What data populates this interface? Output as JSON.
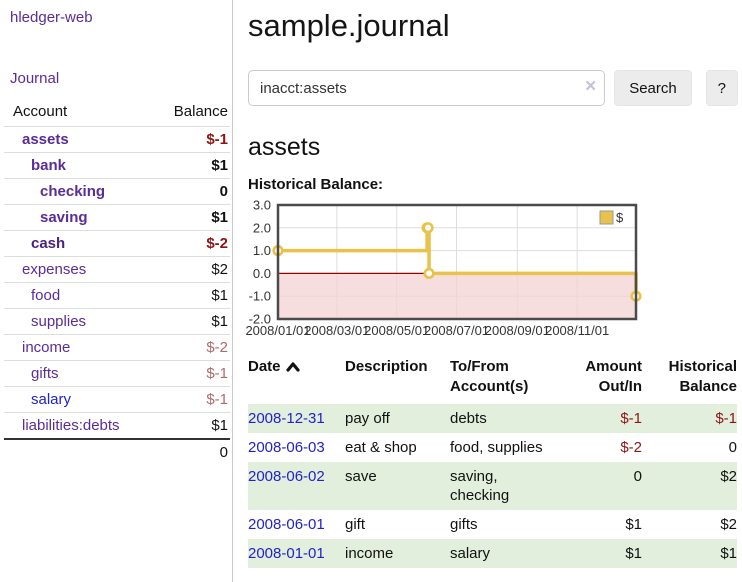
{
  "palette": {
    "link_purple": "#5B2C98",
    "link_blue": "#2222CC",
    "negative_strong": "#8E1414",
    "negative_muted": "#B06A6A",
    "text_black": "#111111",
    "stripe_green": "#E2EFDC"
  },
  "sidebar": {
    "brand": "hledger-web",
    "nav_journal": "Journal",
    "accounts_table": {
      "headers": {
        "account": "Account",
        "balance": "Balance"
      },
      "rows": [
        {
          "label": "assets",
          "indent": 1,
          "bold": true,
          "color": "#5B2C98",
          "balance": "$-1",
          "balance_color": "#8E1414"
        },
        {
          "label": "bank",
          "indent": 2,
          "bold": true,
          "color": "#5B2C98",
          "balance": "$1",
          "balance_color": "#111111"
        },
        {
          "label": "checking",
          "indent": 3,
          "bold": true,
          "color": "#5B2C98",
          "balance": "0",
          "balance_color": "#111111"
        },
        {
          "label": "saving",
          "indent": 3,
          "bold": true,
          "color": "#5B2C98",
          "balance": "$1",
          "balance_color": "#111111"
        },
        {
          "label": "cash",
          "indent": 2,
          "bold": true,
          "color": "#4A1F7E",
          "balance": "$-2",
          "balance_color": "#8E1414"
        },
        {
          "label": "expenses",
          "indent": 1,
          "bold": false,
          "color": "#5B2C98",
          "balance": "$2",
          "balance_color": "#111111"
        },
        {
          "label": "food",
          "indent": 2,
          "bold": false,
          "color": "#5B2C98",
          "balance": "$1",
          "balance_color": "#111111"
        },
        {
          "label": "supplies",
          "indent": 2,
          "bold": false,
          "color": "#5B2C98",
          "balance": "$1",
          "balance_color": "#111111"
        },
        {
          "label": "income",
          "indent": 1,
          "bold": false,
          "color": "#5B2C98",
          "balance": "$-2",
          "balance_color": "#B06A6A"
        },
        {
          "label": "gifts",
          "indent": 2,
          "bold": false,
          "color": "#5B2C98",
          "balance": "$-1",
          "balance_color": "#B06A6A"
        },
        {
          "label": "salary",
          "indent": 2,
          "bold": false,
          "color": "#2222CC",
          "balance": "$-1",
          "balance_color": "#B06A6A"
        },
        {
          "label": "liabilities:debts",
          "indent": 1,
          "bold": false,
          "color": "#5B2C98",
          "balance": "$1",
          "balance_color": "#111111"
        }
      ],
      "total": "0"
    }
  },
  "header": {
    "title": "sample.journal"
  },
  "search": {
    "value": "inacct:assets",
    "clear_icon": "×",
    "button_label": "Search",
    "help_label": "?"
  },
  "account_page": {
    "heading": "assets",
    "chart_label": "Historical Balance:"
  },
  "chart_data": {
    "type": "line",
    "step": true,
    "title": "Historical Balance:",
    "series": [
      {
        "name": "$",
        "color": "#E8C24A",
        "points": [
          {
            "date": "2008-01-01",
            "value": 1
          },
          {
            "date": "2008-06-01",
            "value": 2
          },
          {
            "date": "2008-06-02",
            "value": 2
          },
          {
            "date": "2008-06-03",
            "value": 0
          },
          {
            "date": "2008-12-31",
            "value": -1
          }
        ]
      }
    ],
    "x_range": [
      "2008-01-01",
      "2008-12-31"
    ],
    "x_ticks": [
      "2008/01/01",
      "2008/03/01",
      "2008/05/01",
      "2008/07/01",
      "2008/09/01",
      "2008/11/01"
    ],
    "y_ticks": [
      -2,
      -1,
      0,
      1,
      2,
      3
    ],
    "y_tick_labels": [
      "-2.0",
      "-1.0",
      "0.0",
      "1.0",
      "2.0",
      "3.0"
    ],
    "ylim": [
      -2,
      3
    ],
    "legend": {
      "label": "$",
      "position": "top-right"
    },
    "grid_color": "#DDDDDD",
    "negative_region_color": "#F4D3D3",
    "zero_line_color": "#990000",
    "border_color": "#4A4A4A"
  },
  "transactions": {
    "date_link_color": "#2222CC",
    "columns": [
      {
        "label": "Date",
        "sorted": "ascending"
      },
      {
        "label": "Description"
      },
      {
        "line1": "To/From",
        "line2": "Account(s)"
      },
      {
        "line1": "Amount",
        "line2": "Out/In"
      },
      {
        "line1": "Historical",
        "line2": "Balance"
      }
    ],
    "rows": [
      {
        "date": "2008-12-31",
        "description": "pay off",
        "accounts": "debts",
        "amount": "$-1",
        "amount_color": "#8E1414",
        "balance": "$-1",
        "balance_color": "#8E1414"
      },
      {
        "date": "2008-06-03",
        "description": "eat & shop",
        "accounts": "food, supplies",
        "amount": "$-2",
        "amount_color": "#8E1414",
        "balance": "0",
        "balance_color": "#111111"
      },
      {
        "date": "2008-06-02",
        "description": "save",
        "accounts": "saving, checking",
        "amount": "0",
        "amount_color": "#111111",
        "balance": "$2",
        "balance_color": "#111111"
      },
      {
        "date": "2008-06-01",
        "description": "gift",
        "accounts": "gifts",
        "amount": "$1",
        "amount_color": "#111111",
        "balance": "$2",
        "balance_color": "#111111"
      },
      {
        "date": "2008-01-01",
        "description": "income",
        "accounts": "salary",
        "amount": "$1",
        "amount_color": "#111111",
        "balance": "$1",
        "balance_color": "#111111"
      }
    ]
  }
}
